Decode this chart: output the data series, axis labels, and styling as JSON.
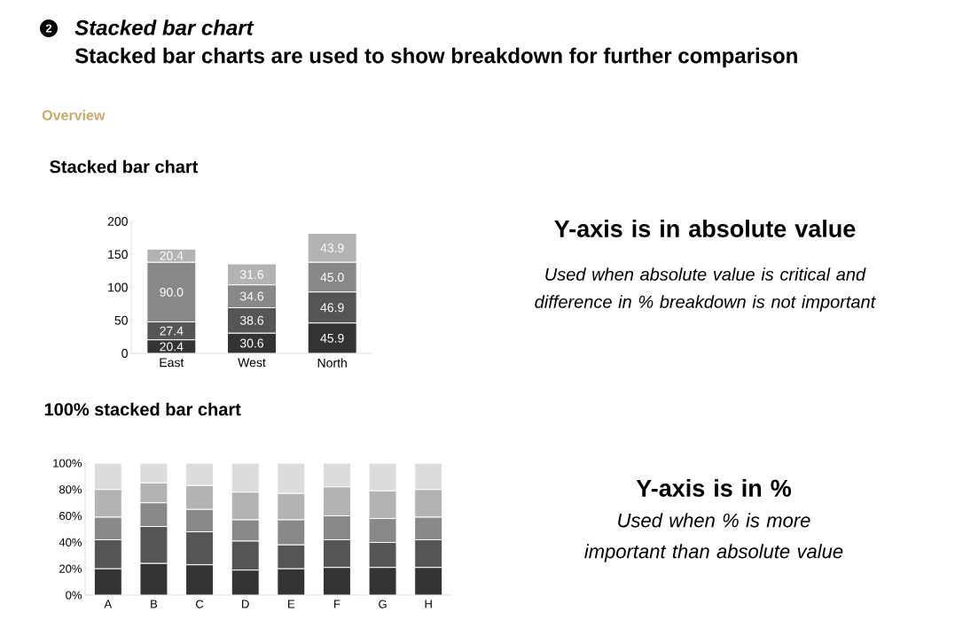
{
  "chart_data": [
    {
      "type": "bar",
      "title": "Stacked bar chart",
      "stacked": true,
      "annotations": [
        "2",
        "Stacked bar chart",
        "Stacked bar charts are used to show breakdown for further comparison",
        "Overview",
        "Y-axis is in absolute value",
        "Used when absolute value is critical and difference in % breakdown is not important"
      ],
      "categories": [
        "East",
        "West",
        "North"
      ],
      "ylim": [
        0,
        200
      ],
      "yticks": [
        0,
        50,
        100,
        150,
        200
      ],
      "series": [
        {
          "color": "#333333",
          "values": [
            20.4,
            30.6,
            45.9
          ],
          "value_labels": [
            "20.4",
            "30.6",
            "45.9"
          ]
        },
        {
          "color": "#555555",
          "values": [
            27.4,
            38.6,
            46.9
          ],
          "value_labels": [
            "27.4",
            "38.6",
            "46.9"
          ]
        },
        {
          "color": "#888888",
          "values": [
            90.0,
            34.6,
            45.0
          ],
          "value_labels": [
            "90.0",
            "34.6",
            "45.0"
          ]
        },
        {
          "color": "#b3b3b3",
          "values": [
            20.4,
            31.6,
            43.9
          ],
          "value_labels": [
            "20.4",
            "31.6",
            "43.9"
          ]
        }
      ]
    },
    {
      "type": "bar",
      "title": "100% stacked bar chart",
      "stacked": true,
      "annotations": [
        "Y-axis is in %",
        "Used when % is more important than absolute value"
      ],
      "categories": [
        "A",
        "B",
        "C",
        "D",
        "E",
        "F",
        "G",
        "H"
      ],
      "ylim": [
        0,
        100
      ],
      "yticks": [
        {
          "value": 0,
          "label": "0%"
        },
        {
          "value": 20,
          "label": "20%"
        },
        {
          "value": 40,
          "label": "40%"
        },
        {
          "value": 60,
          "label": "60%"
        },
        {
          "value": 80,
          "label": "80%"
        },
        {
          "value": 100,
          "label": "100%"
        }
      ],
      "series": [
        {
          "color": "#333333",
          "values": [
            20,
            24,
            23,
            19,
            20,
            21,
            21,
            21
          ]
        },
        {
          "color": "#555555",
          "values": [
            22,
            28,
            25,
            22,
            18,
            21,
            19,
            21
          ]
        },
        {
          "color": "#888888",
          "values": [
            17,
            18,
            17,
            16,
            19,
            18,
            18,
            17
          ]
        },
        {
          "color": "#b3b3b3",
          "values": [
            21,
            15,
            18,
            21,
            20,
            22,
            21,
            21
          ]
        },
        {
          "color": "#dcdcdc",
          "values": [
            20,
            15,
            17,
            22,
            23,
            18,
            21,
            20
          ]
        }
      ]
    }
  ]
}
